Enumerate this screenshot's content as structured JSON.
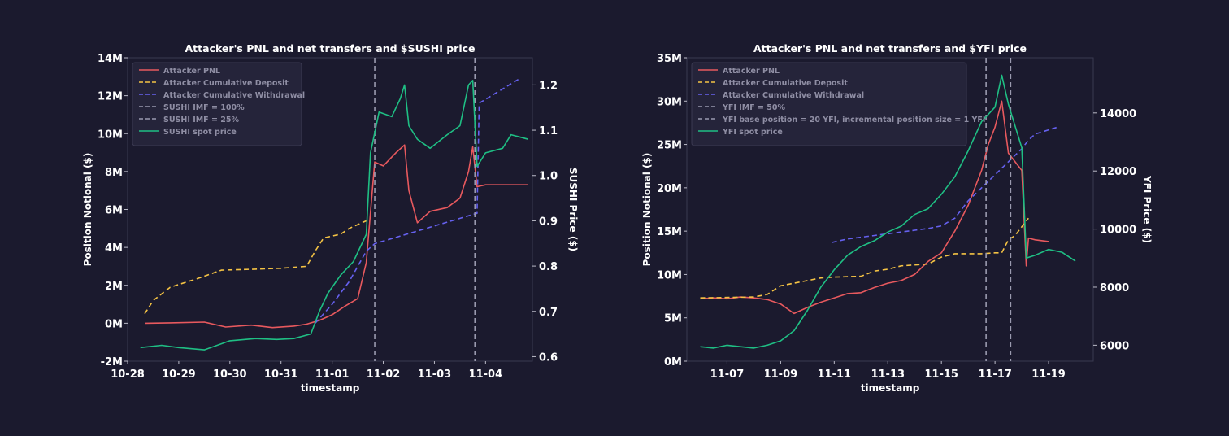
{
  "chart_data": [
    {
      "type": "line",
      "title": "Attacker's PNL and net transfers and $SUSHI price",
      "xlabel": "timestamp",
      "ylabel": "Position Notional ($)",
      "y2label": "SUSHI Price ($)",
      "x_ticks": [
        "10-28",
        "10-29",
        "10-30",
        "10-31",
        "11-01",
        "11-02",
        "11-03",
        "11-04"
      ],
      "xlim": [
        "10-28 00:00",
        "11-04 22:00"
      ],
      "y_ticks": [
        "-2M",
        "0M",
        "2M",
        "4M",
        "6M",
        "8M",
        "10M",
        "12M",
        "14M"
      ],
      "ylim": [
        -2000000,
        14000000
      ],
      "y2_ticks": [
        "0.6",
        "0.7",
        "0.8",
        "0.9",
        "1.0",
        "1.1",
        "1.2"
      ],
      "y2lim": [
        0.59,
        1.26
      ],
      "legend_position": "top-left",
      "grid": false,
      "series": [
        {
          "name": "Attacker PNL",
          "axis": "left",
          "style": "solid",
          "color": "#e8595e",
          "points": [
            [
              "10-28 08:00",
              0
            ],
            [
              "10-28 20:00",
              20000
            ],
            [
              "10-29 12:00",
              60000
            ],
            [
              "10-29 22:00",
              -200000
            ],
            [
              "10-30 10:00",
              -100000
            ],
            [
              "10-30 20:00",
              -230000
            ],
            [
              "10-31 06:00",
              -150000
            ],
            [
              "10-31 12:00",
              -50000
            ],
            [
              "10-31 18:00",
              150000
            ],
            [
              "11-01 00:00",
              450000
            ],
            [
              "11-01 06:00",
              900000
            ],
            [
              "11-01 12:00",
              1300000
            ],
            [
              "11-01 16:00",
              3200000
            ],
            [
              "11-01 20:00",
              8500000
            ],
            [
              "11-02 00:00",
              8300000
            ],
            [
              "11-02 06:00",
              9000000
            ],
            [
              "11-02 10:00",
              9400000
            ],
            [
              "11-02 12:00",
              7000000
            ],
            [
              "11-02 16:00",
              5300000
            ],
            [
              "11-02 22:00",
              5900000
            ],
            [
              "11-03 06:00",
              6100000
            ],
            [
              "11-03 12:00",
              6600000
            ],
            [
              "11-03 16:00",
              8000000
            ],
            [
              "11-03 18:00",
              9300000
            ],
            [
              "11-03 20:00",
              7200000
            ],
            [
              "11-04 00:00",
              7300000
            ],
            [
              "11-04 20:00",
              7300000
            ]
          ]
        },
        {
          "name": "Attacker Cumulative Deposit",
          "axis": "left",
          "style": "dashed",
          "color": "#f5c344",
          "points": [
            [
              "10-28 08:00",
              500000
            ],
            [
              "10-28 12:00",
              1200000
            ],
            [
              "10-28 20:00",
              1900000
            ],
            [
              "10-29 10:00",
              2400000
            ],
            [
              "10-29 20:00",
              2800000
            ],
            [
              "10-30 12:00",
              2850000
            ],
            [
              "10-31 00:00",
              2900000
            ],
            [
              "10-31 12:00",
              3000000
            ],
            [
              "10-31 16:00",
              3800000
            ],
            [
              "10-31 20:00",
              4500000
            ],
            [
              "11-01 04:00",
              4700000
            ],
            [
              "11-01 08:00",
              5000000
            ],
            [
              "11-01 12:00",
              5200000
            ],
            [
              "11-01 16:00",
              5400000
            ]
          ]
        },
        {
          "name": "Attacker Cumulative Withdrawal",
          "axis": "left",
          "style": "dashed",
          "color": "#6661f0",
          "points": [
            [
              "10-31 16:00",
              0
            ],
            [
              "11-01 00:00",
              1000000
            ],
            [
              "11-01 08:00",
              2200000
            ],
            [
              "11-01 16:00",
              3800000
            ],
            [
              "11-01 20:00",
              4200000
            ],
            [
              "11-03 20:00",
              5800000
            ],
            [
              "11-03 21:00",
              11600000
            ],
            [
              "11-04 16:00",
              12900000
            ]
          ]
        },
        {
          "name": "SUSHI IMF = 100%",
          "axis": "vline",
          "style": "dashed",
          "color": "#9a9aaf",
          "x": "11-01 20:00"
        },
        {
          "name": "SUSHI IMF = 25%",
          "axis": "vline",
          "style": "dashed",
          "color": "#9a9aaf",
          "x": "11-03 19:00"
        },
        {
          "name": "SUSHI spot price",
          "axis": "right",
          "style": "solid",
          "color": "#1fbf84",
          "points": [
            [
              "10-28 06:00",
              0.62
            ],
            [
              "10-28 16:00",
              0.625
            ],
            [
              "10-29 00:00",
              0.62
            ],
            [
              "10-29 12:00",
              0.615
            ],
            [
              "10-30 00:00",
              0.635
            ],
            [
              "10-30 12:00",
              0.64
            ],
            [
              "10-30 22:00",
              0.638
            ],
            [
              "10-31 06:00",
              0.64
            ],
            [
              "10-31 14:00",
              0.65
            ],
            [
              "10-31 18:00",
              0.7
            ],
            [
              "10-31 22:00",
              0.74
            ],
            [
              "11-01 04:00",
              0.78
            ],
            [
              "11-01 10:00",
              0.81
            ],
            [
              "11-01 16:00",
              0.87
            ],
            [
              "11-01 18:00",
              1.05
            ],
            [
              "11-01 22:00",
              1.14
            ],
            [
              "11-02 04:00",
              1.13
            ],
            [
              "11-02 08:00",
              1.17
            ],
            [
              "11-02 10:00",
              1.2
            ],
            [
              "11-02 12:00",
              1.11
            ],
            [
              "11-02 16:00",
              1.08
            ],
            [
              "11-02 22:00",
              1.06
            ],
            [
              "11-03 06:00",
              1.09
            ],
            [
              "11-03 12:00",
              1.11
            ],
            [
              "11-03 16:00",
              1.2
            ],
            [
              "11-03 18:00",
              1.21
            ],
            [
              "11-03 20:00",
              1.02
            ],
            [
              "11-04 00:00",
              1.05
            ],
            [
              "11-04 08:00",
              1.06
            ],
            [
              "11-04 12:00",
              1.09
            ],
            [
              "11-04 20:00",
              1.08
            ]
          ]
        }
      ]
    },
    {
      "type": "line",
      "title": "Attacker's PNL and net transfers and $YFI price",
      "xlabel": "timestamp",
      "ylabel": "Position Notional ($)",
      "y2label": "YFI Price ($)",
      "x_ticks": [
        "11-07",
        "11-09",
        "11-11",
        "11-13",
        "11-15",
        "11-17",
        "11-19"
      ],
      "xlim": [
        "11-05 12:00",
        "11-20 16:00"
      ],
      "y_ticks": [
        "0M",
        "5M",
        "10M",
        "15M",
        "20M",
        "25M",
        "30M",
        "35M"
      ],
      "ylim": [
        0,
        35000000
      ],
      "y2_ticks": [
        "6000",
        "8000",
        "10000",
        "12000",
        "14000"
      ],
      "y2lim": [
        5450,
        15900
      ],
      "legend_position": "top-left",
      "grid": false,
      "series": [
        {
          "name": "Attacker PNL",
          "axis": "left",
          "style": "solid",
          "color": "#e8595e",
          "points": [
            [
              "11-06 00:00",
              7200000
            ],
            [
              "11-06 12:00",
              7300000
            ],
            [
              "11-07 00:00",
              7200000
            ],
            [
              "11-07 12:00",
              7400000
            ],
            [
              "11-08 00:00",
              7300000
            ],
            [
              "11-08 12:00",
              7100000
            ],
            [
              "11-09 00:00",
              6600000
            ],
            [
              "11-09 12:00",
              5500000
            ],
            [
              "11-10 00:00",
              6200000
            ],
            [
              "11-10 12:00",
              6800000
            ],
            [
              "11-11 00:00",
              7300000
            ],
            [
              "11-11 12:00",
              7800000
            ],
            [
              "11-12 00:00",
              7900000
            ],
            [
              "11-12 12:00",
              8500000
            ],
            [
              "11-13 00:00",
              9000000
            ],
            [
              "11-13 12:00",
              9300000
            ],
            [
              "11-14 00:00",
              10000000
            ],
            [
              "11-14 12:00",
              11500000
            ],
            [
              "11-15 00:00",
              12500000
            ],
            [
              "11-15 12:00",
              15000000
            ],
            [
              "11-16 00:00",
              18000000
            ],
            [
              "11-16 12:00",
              22000000
            ],
            [
              "11-16 18:00",
              25000000
            ],
            [
              "11-17 00:00",
              27000000
            ],
            [
              "11-17 06:00",
              30000000
            ],
            [
              "11-17 12:00",
              24000000
            ],
            [
              "11-18 00:00",
              22000000
            ],
            [
              "11-18 04:00",
              11000000
            ],
            [
              "11-18 06:00",
              14200000
            ],
            [
              "11-18 12:00",
              14000000
            ],
            [
              "11-19 00:00",
              13800000
            ]
          ]
        },
        {
          "name": "Attacker Cumulative Deposit",
          "axis": "left",
          "style": "dashed",
          "color": "#f5c344",
          "points": [
            [
              "11-06 00:00",
              7300000
            ],
            [
              "11-08 00:00",
              7400000
            ],
            [
              "11-08 12:00",
              7700000
            ],
            [
              "11-09 00:00",
              8700000
            ],
            [
              "11-09 12:00",
              9000000
            ],
            [
              "11-10 12:00",
              9600000
            ],
            [
              "11-11 00:00",
              9700000
            ],
            [
              "11-12 00:00",
              9800000
            ],
            [
              "11-12 12:00",
              10400000
            ],
            [
              "11-13 00:00",
              10600000
            ],
            [
              "11-13 12:00",
              11000000
            ],
            [
              "11-14 12:00",
              11200000
            ],
            [
              "11-15 00:00",
              12000000
            ],
            [
              "11-15 12:00",
              12400000
            ],
            [
              "11-16 12:00",
              12400000
            ],
            [
              "11-17 00:00",
              12500000
            ],
            [
              "11-17 06:00",
              12500000
            ],
            [
              "11-17 12:00",
              14000000
            ],
            [
              "11-17 18:00",
              14500000
            ],
            [
              "11-18 00:00",
              15500000
            ],
            [
              "11-18 06:00",
              16500000
            ]
          ]
        },
        {
          "name": "Attacker Cumulative Withdrawal",
          "axis": "left",
          "style": "dashed",
          "color": "#6661f0",
          "points": [
            [
              "11-10 22:00",
              13700000
            ],
            [
              "11-11 12:00",
              14100000
            ],
            [
              "11-12 12:00",
              14500000
            ],
            [
              "11-13 12:00",
              14900000
            ],
            [
              "11-14 12:00",
              15300000
            ],
            [
              "11-15 00:00",
              15600000
            ],
            [
              "11-15 12:00",
              16500000
            ],
            [
              "11-16 00:00",
              18500000
            ],
            [
              "11-16 12:00",
              20000000
            ],
            [
              "11-17 00:00",
              21500000
            ],
            [
              "11-17 12:00",
              23000000
            ],
            [
              "11-18 00:00",
              24500000
            ],
            [
              "11-18 06:00",
              25500000
            ],
            [
              "11-18 12:00",
              26200000
            ],
            [
              "11-19 08:00",
              27000000
            ]
          ]
        },
        {
          "name": "YFI IMF = 50%",
          "axis": "vline",
          "style": "dashed",
          "color": "#9a9aaf",
          "x": "11-16 16:00"
        },
        {
          "name": "YFI base position = 20 YFI, incremental position size = 1 YFI",
          "axis": "vline",
          "style": "dashed",
          "color": "#9a9aaf",
          "x": "11-17 14:00"
        },
        {
          "name": "YFI spot price",
          "axis": "right",
          "style": "solid",
          "color": "#1fbf84",
          "points": [
            [
              "11-06 00:00",
              5950
            ],
            [
              "11-06 12:00",
              5900
            ],
            [
              "11-07 00:00",
              6000
            ],
            [
              "11-07 12:00",
              5950
            ],
            [
              "11-08 00:00",
              5900
            ],
            [
              "11-08 12:00",
              6000
            ],
            [
              "11-09 00:00",
              6150
            ],
            [
              "11-09 12:00",
              6500
            ],
            [
              "11-10 00:00",
              7200
            ],
            [
              "11-10 12:00",
              8000
            ],
            [
              "11-11 00:00",
              8600
            ],
            [
              "11-11 12:00",
              9100
            ],
            [
              "11-12 00:00",
              9400
            ],
            [
              "11-12 12:00",
              9600
            ],
            [
              "11-13 00:00",
              9900
            ],
            [
              "11-13 12:00",
              10100
            ],
            [
              "11-14 00:00",
              10500
            ],
            [
              "11-14 12:00",
              10700
            ],
            [
              "11-15 00:00",
              11200
            ],
            [
              "11-15 12:00",
              11800
            ],
            [
              "11-16 00:00",
              12700
            ],
            [
              "11-16 12:00",
              13700
            ],
            [
              "11-17 00:00",
              14200
            ],
            [
              "11-17 06:00",
              15300
            ],
            [
              "11-17 12:00",
              14300
            ],
            [
              "11-18 00:00",
              12800
            ],
            [
              "11-18 04:00",
              9000
            ],
            [
              "11-18 12:00",
              9100
            ],
            [
              "11-19 00:00",
              9300
            ],
            [
              "11-19 12:00",
              9200
            ],
            [
              "11-20 00:00",
              8900
            ]
          ]
        }
      ]
    }
  ]
}
